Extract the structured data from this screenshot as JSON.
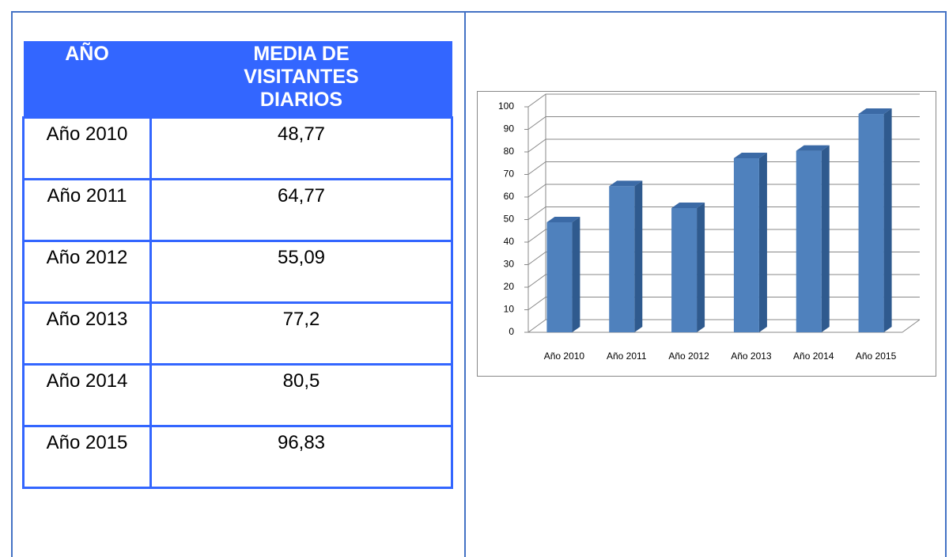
{
  "table": {
    "headers": [
      "AÑO",
      "MEDIA DE VISITANTES DIARIOS"
    ],
    "rows": [
      [
        "Año 2010",
        "48,77"
      ],
      [
        "Año 2011",
        "64,77"
      ],
      [
        "Año 2012",
        "55,09"
      ],
      [
        "Año 2013",
        "77,2"
      ],
      [
        "Año 2014",
        "80,5"
      ],
      [
        "Año 2015",
        "96,83"
      ]
    ]
  },
  "chart_data": {
    "type": "bar",
    "categories": [
      "Año 2010",
      "Año 2011",
      "Año 2012",
      "Año 2013",
      "Año 2014",
      "Año 2015"
    ],
    "values": [
      48.77,
      64.77,
      55.09,
      77.2,
      80.5,
      96.83
    ],
    "color": "#4f81bd",
    "ylim": [
      0,
      100
    ],
    "yticks": [
      0,
      10,
      20,
      30,
      40,
      50,
      60,
      70,
      80,
      90,
      100
    ],
    "grid": true
  }
}
